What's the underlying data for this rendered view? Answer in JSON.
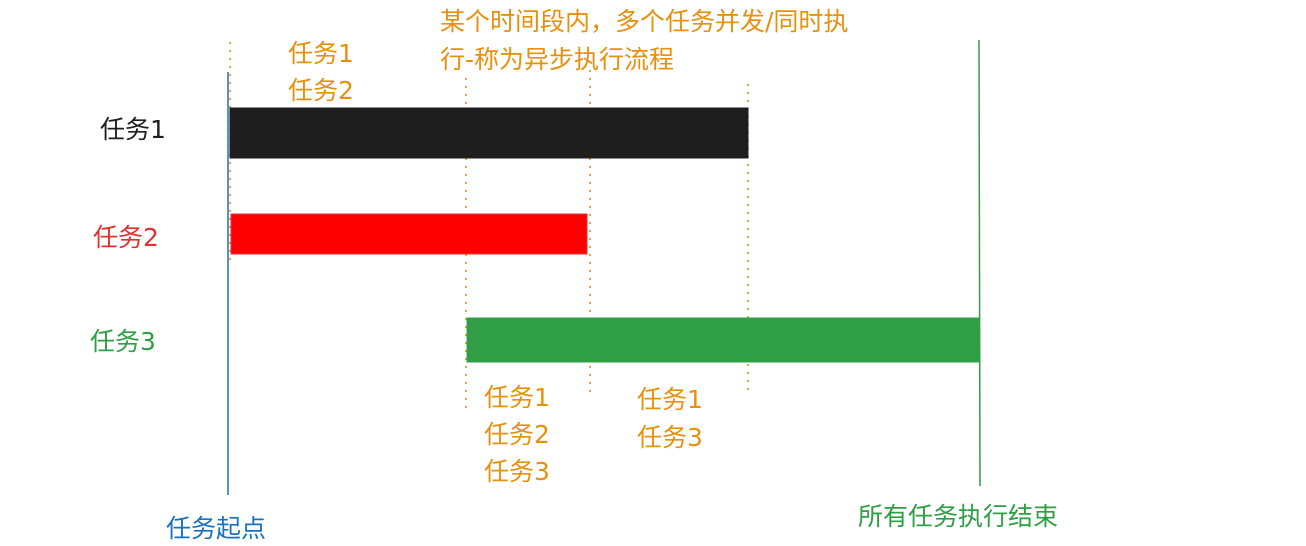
{
  "colors": {
    "task1": "#1e1e1e",
    "task2": "#ff0000",
    "task3": "#2f9e44",
    "start_line": "#1971c2",
    "end_line": "#2f9e44",
    "annotation": "#e8900c",
    "task2_label": "#e03131"
  },
  "tasks": [
    {
      "name": "任务1",
      "color": "#1e1e1e"
    },
    {
      "name": "任务2",
      "color": "#e03131"
    },
    {
      "name": "任务3",
      "color": "#2f9e44"
    }
  ],
  "note": {
    "line1": "某个时间段内，多个任务并发/同时执",
    "line2": "行-称为异步执行流程"
  },
  "intervals": {
    "first": [
      "任务1",
      "任务2"
    ],
    "second": [
      "任务1",
      "任务2",
      "任务3"
    ],
    "third": [
      "任务1",
      "任务3"
    ]
  },
  "start_label": "任务起点",
  "end_label": "所有任务执行结束"
}
